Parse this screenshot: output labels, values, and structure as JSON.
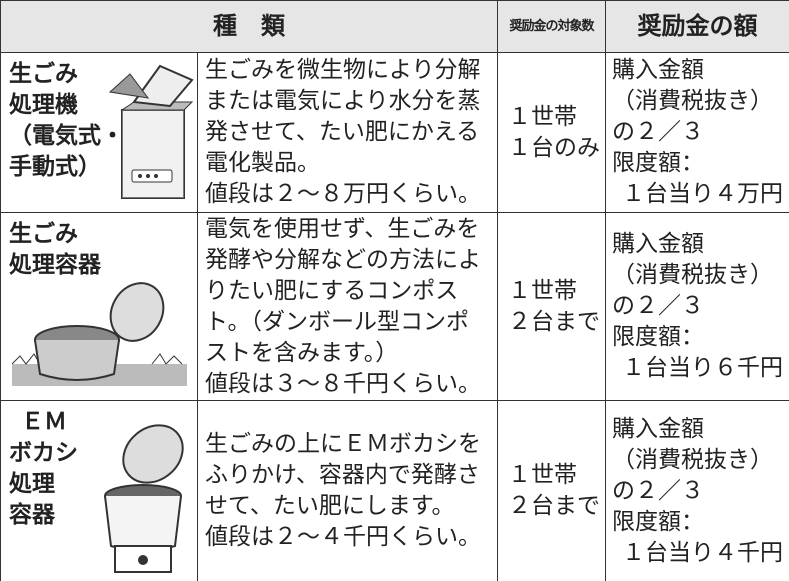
{
  "table": {
    "header": [
      "種　類",
      "奨励金の対象数",
      "奨励金の額"
    ],
    "rows": [
      {
        "name": [
          "生ごみ",
          "処理機",
          "（電気式・",
          "手動式）"
        ],
        "description": [
          "生ごみを微生物により分解",
          "または電気により水分を蒸",
          "発させて、たい肥にかえる",
          "電化製品。",
          "値段は２～８万円くらい。"
        ],
        "count": [
          "１世帯",
          "１台のみ"
        ],
        "amount": [
          "購入金額",
          "（消費税抜き）",
          "の２／３",
          "限度額：",
          "１台当り４万円"
        ]
      },
      {
        "name": [
          "生ごみ",
          "処理容器"
        ],
        "description": [
          "電気を使用せず、生ごみを",
          "発酵や分解などの方法によ",
          "りたい肥にするコンポス",
          "ト。（ダンボール型コンポ",
          "ストを含みます。）",
          "値段は３～８千円くらい。"
        ],
        "count": [
          "１世帯",
          "２台まで"
        ],
        "amount": [
          "購入金額",
          "（消費税抜き）",
          "の２／３",
          "限度額：",
          "１台当り６千円"
        ]
      },
      {
        "name": [
          "ＥＭ",
          "ボカシ",
          "処理",
          "容器"
        ],
        "description": [
          "生ごみの上にＥＭボカシを",
          "ふりかけ、容器内で発酵さ",
          "せて、たい肥にします。",
          "値段は２～４千円くらい。"
        ],
        "count": [
          "１世帯",
          "２台まで"
        ],
        "amount": [
          "購入金額",
          "（消費税抜き）",
          "の２／３",
          "限度額：",
          "１台当り４千円"
        ]
      }
    ]
  }
}
